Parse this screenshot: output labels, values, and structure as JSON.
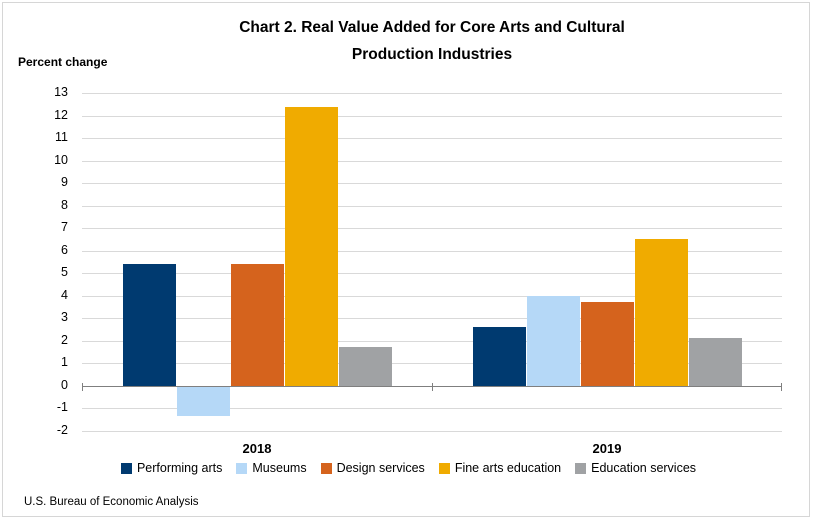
{
  "header": {
    "title_line1": "Chart 2. Real Value Added for Core Arts and Cultural",
    "title_line2": "Production Industries",
    "y_axis_title": "Percent change"
  },
  "footer": {
    "source_note": "U.S. Bureau of Economic Analysis"
  },
  "colors": {
    "gridline": "#d9d9d9",
    "zero_axis": "#7f7f7f",
    "text": "#000000",
    "performing_arts": "#003A70",
    "museums": "#B5D8F7",
    "design_services": "#D5631D",
    "fine_arts_education": "#F0AB00",
    "education_services": "#A0A2A4"
  },
  "chart_data": {
    "type": "bar",
    "title": "Chart 2. Real Value Added for Core Arts and Cultural Production Industries",
    "xlabel": "",
    "ylabel": "Percent change",
    "categories": [
      "2018",
      "2019"
    ],
    "series": [
      {
        "name": "Performing arts",
        "color": "#003A70",
        "values": [
          5.4,
          2.6
        ]
      },
      {
        "name": "Museums",
        "color": "#B5D8F7",
        "values": [
          -1.3,
          4.0
        ]
      },
      {
        "name": "Design services",
        "color": "#D5631D",
        "values": [
          5.4,
          3.7
        ]
      },
      {
        "name": "Fine arts education",
        "color": "#F0AB00",
        "values": [
          12.4,
          6.5
        ]
      },
      {
        "name": "Education services",
        "color": "#A0A2A4",
        "values": [
          1.7,
          2.1
        ]
      }
    ],
    "ylim": [
      -2,
      13
    ],
    "ytick_step": 1,
    "grid": true,
    "legend_position": "bottom"
  }
}
